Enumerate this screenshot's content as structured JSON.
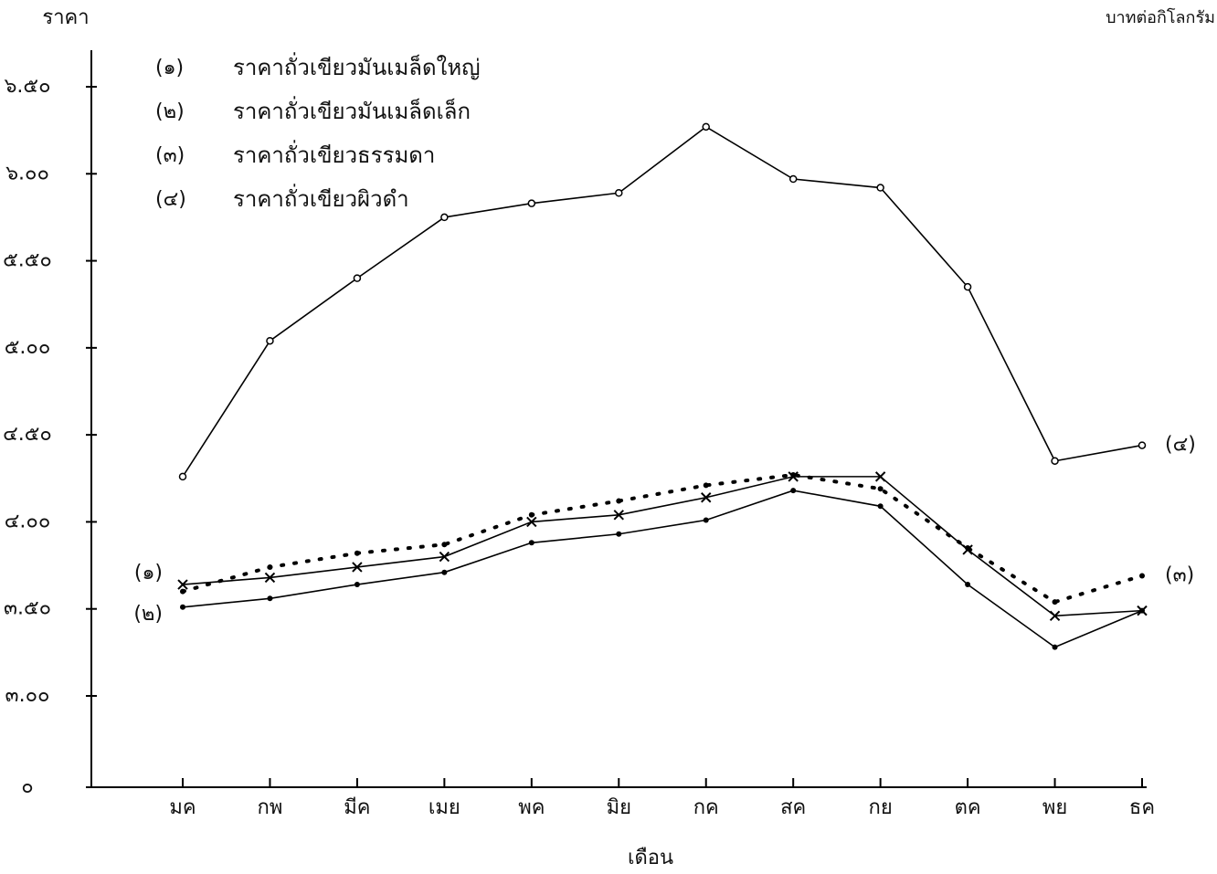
{
  "chart_data": {
    "type": "line",
    "y_label": "ราคา",
    "x_label": "เดือน",
    "unit_note": "บาทต่อกิโลกรัม",
    "categories": [
      "มค",
      "กพ",
      "มีค",
      "เมย",
      "พค",
      "มิย",
      "กค",
      "สค",
      "กย",
      "ตค",
      "พย",
      "ธค"
    ],
    "series": [
      {
        "name": "ราคาถั่วเขียวมันเมล็ดใหญ่",
        "tag": "(๑)",
        "color": "#000000",
        "marker": "x",
        "dash": "solid",
        "tag_side": "left",
        "values": [
          3.64,
          3.68,
          3.74,
          3.8,
          4.0,
          4.04,
          4.14,
          4.26,
          4.26,
          3.84,
          3.46,
          3.49
        ]
      },
      {
        "name": "ราคาถั่วเขียวมันเมล็ดเล็ก",
        "tag": "(๒)",
        "color": "#000000",
        "marker": "dot",
        "dash": "solid",
        "tag_side": "left",
        "values": [
          3.51,
          3.56,
          3.64,
          3.71,
          3.88,
          3.93,
          4.01,
          4.18,
          4.09,
          3.64,
          3.28,
          3.49
        ]
      },
      {
        "name": "ราคาถั่วเขียวธรรมดา",
        "tag": "(๓)",
        "color": "#000000",
        "marker": "dot",
        "dash": "dotted",
        "tag_side": "right",
        "values": [
          3.6,
          3.74,
          3.82,
          3.87,
          4.04,
          4.12,
          4.21,
          4.27,
          4.19,
          3.85,
          3.54,
          3.69
        ]
      },
      {
        "name": "ราคาถั่วเขียวผิวดำ",
        "tag": "(๔)",
        "color": "#000000",
        "marker": "circle",
        "dash": "solid",
        "tag_side": "right",
        "values": [
          4.26,
          5.04,
          5.4,
          5.75,
          5.83,
          5.89,
          6.27,
          5.97,
          5.92,
          5.35,
          4.35,
          4.44
        ]
      }
    ],
    "ylim": [
      0,
      6.5
    ],
    "axis_break": [
      0,
      3
    ],
    "yticks": [
      {
        "value": 0,
        "label": "๐"
      },
      {
        "value": 3,
        "label": "๓.๐๐"
      },
      {
        "value": 3.5,
        "label": "๓.๕๐"
      },
      {
        "value": 4,
        "label": "๔.๐๐"
      },
      {
        "value": 4.5,
        "label": "๔.๕๐"
      },
      {
        "value": 5,
        "label": "๕.๐๐"
      },
      {
        "value": 5.5,
        "label": "๕.๕๐"
      },
      {
        "value": 6,
        "label": "๖.๐๐"
      },
      {
        "value": 6.5,
        "label": "๖.๕๐"
      }
    ],
    "grid": false
  }
}
